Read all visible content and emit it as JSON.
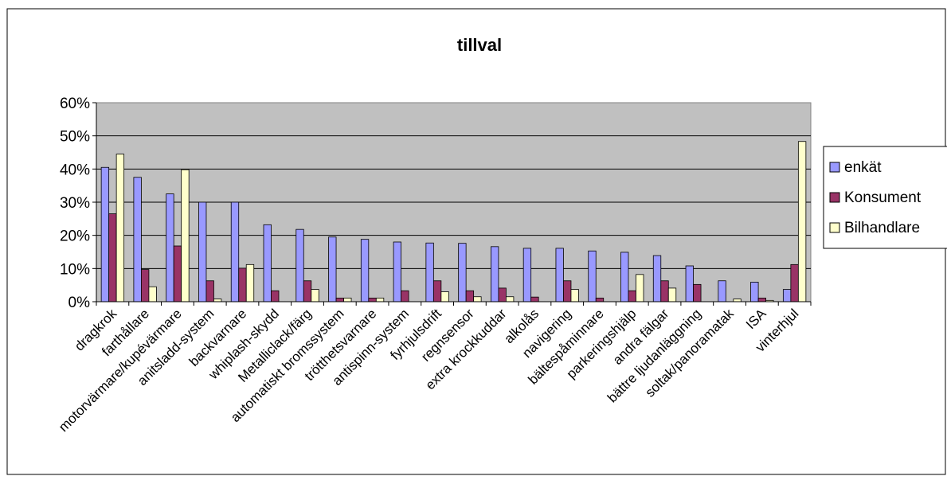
{
  "chart_data": {
    "type": "bar",
    "title": "tillval",
    "xlabel": "",
    "ylabel": "",
    "ylim": [
      0,
      0.6
    ],
    "yticks": [
      0,
      0.1,
      0.2,
      0.3,
      0.4,
      0.5,
      0.6
    ],
    "ytick_labels": [
      "0%",
      "10%",
      "20%",
      "30%",
      "40%",
      "50%",
      "60%"
    ],
    "grid": true,
    "legend_position": "right",
    "plot_background": "#C0C0C0",
    "categories": [
      "dragkrok",
      "farthållare",
      "motorvärmare/kupévärmare",
      "anitsladd-system",
      "backvarnare",
      "whiplash-skydd",
      "Metalliclack/färg",
      "automatiskt bromssystem",
      "trötthetsvarnare",
      "antispinn-system",
      "fyrhjulsdrift",
      "regnsensor",
      "extra krockkuddar",
      "alkolås",
      "navigering",
      "bältespåminnare",
      "parkeringshjälp",
      "andra fälgar",
      "bättre ljudanläggning",
      "soltak/panoramatak",
      "ISA",
      "vinterhjul"
    ],
    "series": [
      {
        "name": "enkät",
        "color": "#9999FF",
        "values": [
          0.405,
          0.375,
          0.325,
          0.3,
          0.3,
          0.232,
          0.218,
          0.195,
          0.188,
          0.18,
          0.177,
          0.176,
          0.166,
          0.161,
          0.161,
          0.153,
          0.149,
          0.139,
          0.108,
          0.063,
          0.059,
          0.037
        ]
      },
      {
        "name": "Konsument",
        "color": "#993366",
        "values": [
          0.265,
          0.097,
          0.168,
          0.063,
          0.101,
          0.033,
          0.063,
          0.011,
          0.011,
          0.033,
          0.063,
          0.033,
          0.041,
          0.014,
          0.063,
          0.011,
          0.033,
          0.063,
          0.052,
          0.0,
          0.011,
          0.112
        ]
      },
      {
        "name": "Bilhandlare",
        "color": "#FFFFCC",
        "values": [
          0.445,
          0.045,
          0.398,
          0.008,
          0.112,
          0.0,
          0.037,
          0.011,
          0.011,
          0.0,
          0.03,
          0.015,
          0.015,
          0.0,
          0.037,
          0.0,
          0.082,
          0.041,
          0.0,
          0.008,
          0.004,
          0.483
        ]
      }
    ]
  }
}
